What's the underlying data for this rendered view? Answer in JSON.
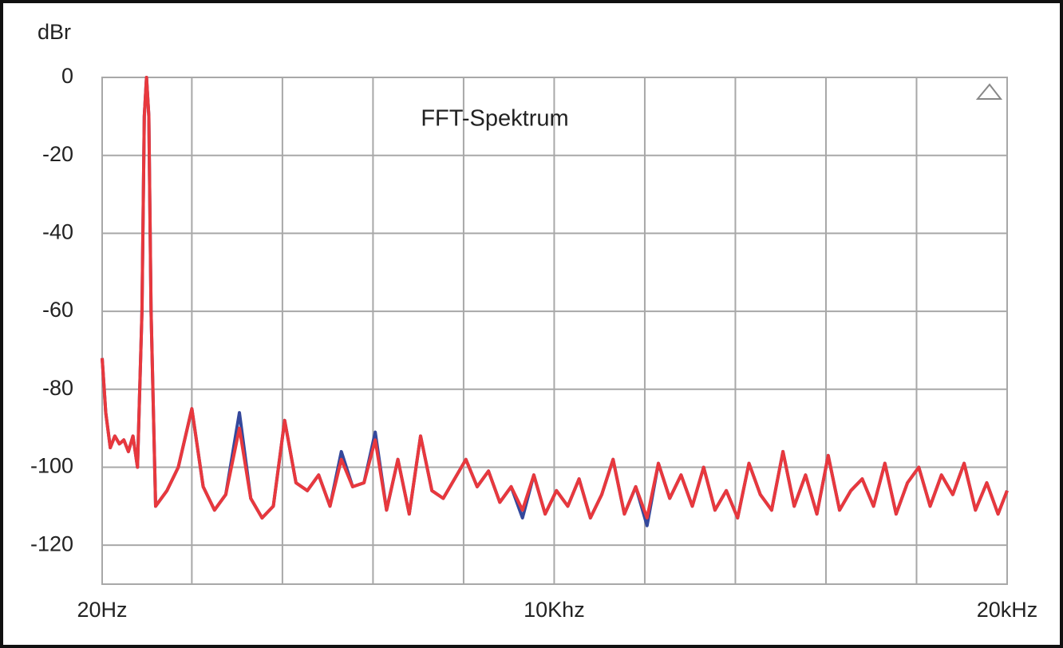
{
  "chart_data": {
    "type": "line",
    "title": "FFT-Spektrum",
    "y_label": "dBr",
    "xlim": [
      20,
      20000
    ],
    "xticks": [
      {
        "value": 20,
        "label": "20Hz"
      },
      {
        "value": 10000,
        "label": "10Khz"
      },
      {
        "value": 20000,
        "label": "20kHz"
      }
    ],
    "xgrid": [
      2000,
      4000,
      6000,
      8000,
      12000,
      14000,
      16000,
      18000
    ],
    "ylim": [
      -130,
      0
    ],
    "yticks": [
      0,
      -20,
      -40,
      -60,
      -80,
      -100,
      -120
    ],
    "grid": true,
    "x": [
      20,
      100,
      200,
      300,
      400,
      500,
      600,
      700,
      800,
      900,
      950,
      1000,
      1050,
      1100,
      1200,
      1450,
      1700,
      2000,
      2250,
      2500,
      2750,
      3050,
      3300,
      3550,
      3800,
      4050,
      4300,
      4550,
      4800,
      5050,
      5300,
      5550,
      5800,
      6050,
      6300,
      6550,
      6800,
      7050,
      7300,
      7550,
      7800,
      8050,
      8300,
      8550,
      8800,
      9050,
      9300,
      9550,
      9800,
      10050,
      10300,
      10550,
      10800,
      11050,
      11300,
      11550,
      11800,
      12050,
      12300,
      12550,
      12800,
      13050,
      13300,
      13550,
      13800,
      14050,
      14300,
      14550,
      14800,
      15050,
      15300,
      15550,
      15800,
      16050,
      16300,
      16550,
      16800,
      17050,
      17300,
      17550,
      17800,
      18050,
      18300,
      18550,
      18800,
      19050,
      19300,
      19550,
      19800,
      20000
    ],
    "series": [
      {
        "color": "#34489c",
        "values": [
          -72,
          -86,
          -95,
          -92,
          -94,
          -93,
          -96,
          -92,
          -100,
          -60,
          -10,
          0,
          -10,
          -60,
          -110,
          -106,
          -100,
          -85,
          -105,
          -111,
          -107,
          -86,
          -108,
          -113,
          -110,
          -88,
          -104,
          -106,
          -102,
          -110,
          -96,
          -105,
          -104,
          -91,
          -111,
          -98,
          -112,
          -92,
          -106,
          -108,
          -103,
          -98,
          -105,
          -101,
          -109,
          -105,
          -113,
          -102,
          -112,
          -106,
          -110,
          -103,
          -113,
          -107,
          -98,
          -112,
          -105,
          -115,
          -99,
          -108,
          -102,
          -110,
          -100,
          -111,
          -106,
          -113,
          -99,
          -107,
          -111,
          -96,
          -110,
          -102,
          -112,
          -97,
          -111,
          -106,
          -103,
          -110,
          -99,
          -112,
          -104,
          -100,
          -110,
          -102,
          -107,
          -99,
          -111,
          -104,
          -112,
          -106
        ]
      },
      {
        "color": "#e8383d",
        "values": [
          -72,
          -86,
          -95,
          -92,
          -94,
          -93,
          -96,
          -92,
          -100,
          -60,
          -10,
          0,
          -10,
          -60,
          -110,
          -106,
          -100,
          -85,
          -105,
          -111,
          -107,
          -90,
          -108,
          -113,
          -110,
          -88,
          -104,
          -106,
          -102,
          -110,
          -98,
          -105,
          -104,
          -93,
          -111,
          -98,
          -112,
          -92,
          -106,
          -108,
          -103,
          -98,
          -105,
          -101,
          -109,
          -105,
          -111,
          -102,
          -112,
          -106,
          -110,
          -103,
          -113,
          -107,
          -98,
          -112,
          -105,
          -113,
          -99,
          -108,
          -102,
          -110,
          -100,
          -111,
          -106,
          -113,
          -99,
          -107,
          -111,
          -96,
          -110,
          -102,
          -112,
          -97,
          -111,
          -106,
          -103,
          -110,
          -99,
          -112,
          -104,
          -100,
          -110,
          -102,
          -107,
          -99,
          -111,
          -104,
          -112,
          -106
        ]
      }
    ]
  }
}
